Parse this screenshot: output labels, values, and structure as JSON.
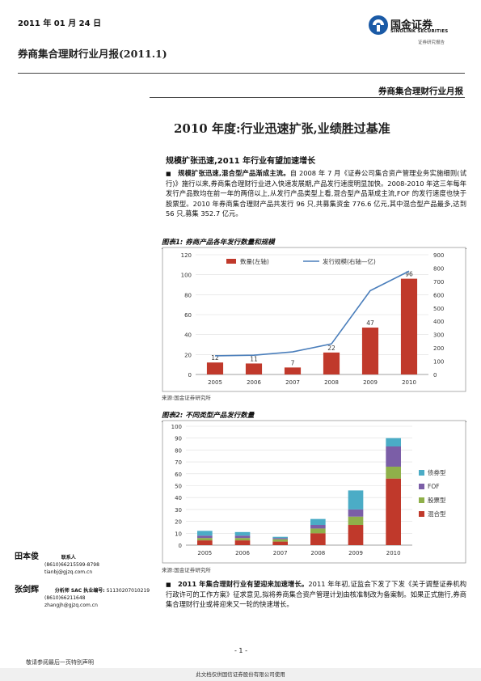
{
  "header": {
    "date": "2011 年 01 月 24 日",
    "report_title": "券商集合理财行业月报(2011.1)",
    "category": "券商集合理财行业月报",
    "logo_cn": "国金证券",
    "logo_en": "SINOLINK SECURITIES",
    "logo_sub": "证券研究报告"
  },
  "headline": "2010 年度:行业迅速扩张,业绩胜过基准",
  "section1": {
    "title": "规模扩张迅速,2011 年行业有望加速增长",
    "bullet_lead": "规模扩张迅速,混合型产品渐成主流。",
    "text": "自 2008 年 7 月《证券公司集合资产管理业务实施细则(试行)》施行以来,券商集合理财行业进入快速发展期,产品发行速度明显加快。2008-2010 年这三年每年发行产品数均在前一年的两倍以上,从发行产品类型上看,混合型产品渐成主流,FOF 的发行速度也快于股票型。2010 年券商集合理财产品共发行 96 只,共募集资金 776.6 亿元,其中混合型产品最多,达到 56 只,募集 352.7 亿元。"
  },
  "figure1": {
    "title": "图表1: 券商产品各年发行数量和规模",
    "source": "来源:国金证券研究所"
  },
  "figure2": {
    "title": "图表2: 不同类型产品发行数量",
    "source": "来源:国金证券研究所"
  },
  "section2": {
    "bullet_lead": "2011 年集合理财行业有望迎来加速增长。",
    "text": "2011 年年初,证监会下发了下发《关于调整证券机构行政许可的工作方案》征求意见,拟将券商集合资产管理计划由核准制改为备案制。如果正式施行,券商集合理财行业或将迎来又一轮的快速增长。"
  },
  "authors": [
    {
      "name": "田本俊",
      "role": "联系人",
      "phone": "(8610)66215599-8798",
      "email": "tianbj@gjzq.com.cn",
      "license": ""
    },
    {
      "name": "张剑辉",
      "role": "分析师 SAC 执业编号:",
      "phone": "(8610)66211648",
      "email": "zhangjh@gjzq.com.cn",
      "license": "S1130207010219"
    }
  ],
  "footer": {
    "disclaimer": "敬请参阅最后一页特别声明",
    "page": "- 1 -",
    "notice": "此文档仅供国信证券股份有限公司使用"
  },
  "chart_data": [
    {
      "type": "bar",
      "categories": [
        "2005",
        "2006",
        "2007",
        "2008",
        "2009",
        "2010"
      ],
      "series": [
        {
          "name": "数量(左轴)",
          "values": [
            12,
            11,
            7,
            22,
            47,
            96
          ],
          "color": "#c0392b"
        },
        {
          "name": "发行规模(右轴—亿)",
          "values": [
            140,
            145,
            170,
            230,
            630,
            777
          ],
          "color": "#4a7ebb",
          "type": "line"
        }
      ],
      "ylim": [
        0,
        120
      ],
      "y2lim": [
        0,
        900
      ],
      "yticks": [
        0,
        20,
        40,
        60,
        80,
        100,
        120
      ],
      "y2ticks": [
        0,
        100,
        200,
        300,
        400,
        500,
        600,
        700,
        800,
        900
      ],
      "data_labels": [
        "12",
        "11",
        "7",
        "22",
        "47",
        "96"
      ],
      "legend": "top"
    },
    {
      "type": "bar",
      "stacked": true,
      "categories": [
        "2005",
        "2006",
        "2007",
        "2008",
        "2009",
        "2010"
      ],
      "series": [
        {
          "name": "混合型",
          "values": [
            4,
            4,
            3,
            10,
            17,
            56
          ],
          "color": "#c0392b"
        },
        {
          "name": "股票型",
          "values": [
            2,
            2,
            2,
            4,
            7,
            10
          ],
          "color": "#8fb04a"
        },
        {
          "name": "FOF",
          "values": [
            2,
            2,
            1,
            3,
            6,
            17
          ],
          "color": "#7b5ea7"
        },
        {
          "name": "债券型",
          "values": [
            4,
            3,
            1,
            5,
            16,
            7
          ],
          "color": "#4bacc6"
        }
      ],
      "ylim": [
        0,
        100
      ],
      "yticks": [
        0,
        10,
        20,
        30,
        40,
        50,
        60,
        70,
        80,
        90,
        100
      ],
      "legend": "right"
    }
  ]
}
